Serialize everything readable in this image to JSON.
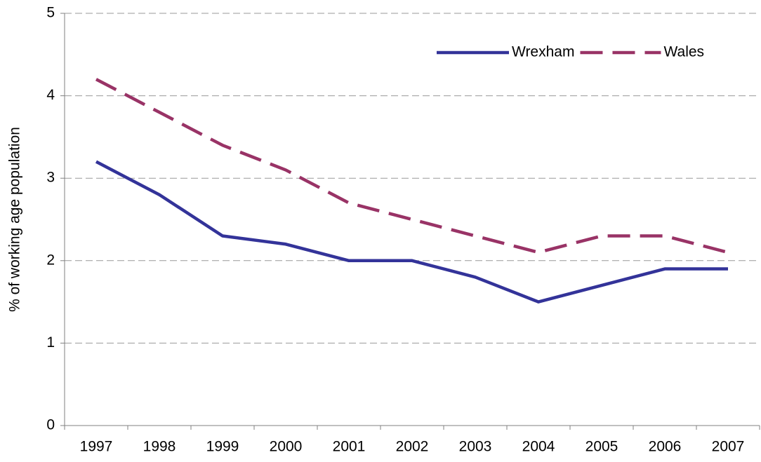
{
  "chart_data": {
    "type": "line",
    "y_label": "% of working age population",
    "categories": [
      "1997",
      "1998",
      "1999",
      "2000",
      "2001",
      "2002",
      "2003",
      "2004",
      "2005",
      "2006",
      "2007"
    ],
    "series": [
      {
        "name": "Wrexham",
        "color": "#333399",
        "dash": false,
        "values": [
          3.2,
          2.8,
          2.3,
          2.2,
          2.0,
          2.0,
          1.8,
          1.5,
          1.7,
          1.9,
          1.9
        ]
      },
      {
        "name": "Wales",
        "color": "#993366",
        "dash": true,
        "values": [
          4.2,
          3.8,
          3.4,
          3.1,
          2.7,
          2.5,
          2.3,
          2.1,
          2.3,
          2.3,
          2.1
        ]
      }
    ],
    "ylim": [
      0,
      5
    ],
    "yticks": [
      0,
      1,
      2,
      3,
      4,
      5
    ],
    "grid": true,
    "legend": "upper right"
  }
}
